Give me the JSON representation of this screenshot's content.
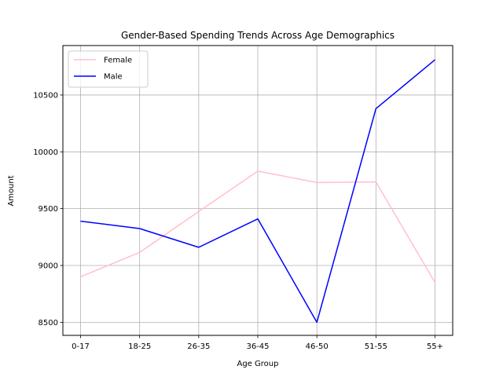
{
  "chart_data": {
    "type": "line",
    "title": "Gender-Based Spending Trends Across Age Demographics",
    "xlabel": "Age Group",
    "ylabel": "Amount",
    "categories": [
      "0-17",
      "18-25",
      "26-35",
      "36-45",
      "46-50",
      "51-55",
      "55+"
    ],
    "yticks": [
      8500,
      9000,
      9500,
      10000,
      10500
    ],
    "ylim": [
      8385,
      10935
    ],
    "grid": true,
    "legend_position": "top-left",
    "series": [
      {
        "name": "Female",
        "color": "#ffc0cb",
        "values": [
          8900,
          9115,
          9475,
          9830,
          9730,
          9735,
          8850
        ]
      },
      {
        "name": "Male",
        "color": "#0000ff",
        "values": [
          9390,
          9325,
          9160,
          9410,
          8500,
          10380,
          10810
        ]
      }
    ]
  }
}
